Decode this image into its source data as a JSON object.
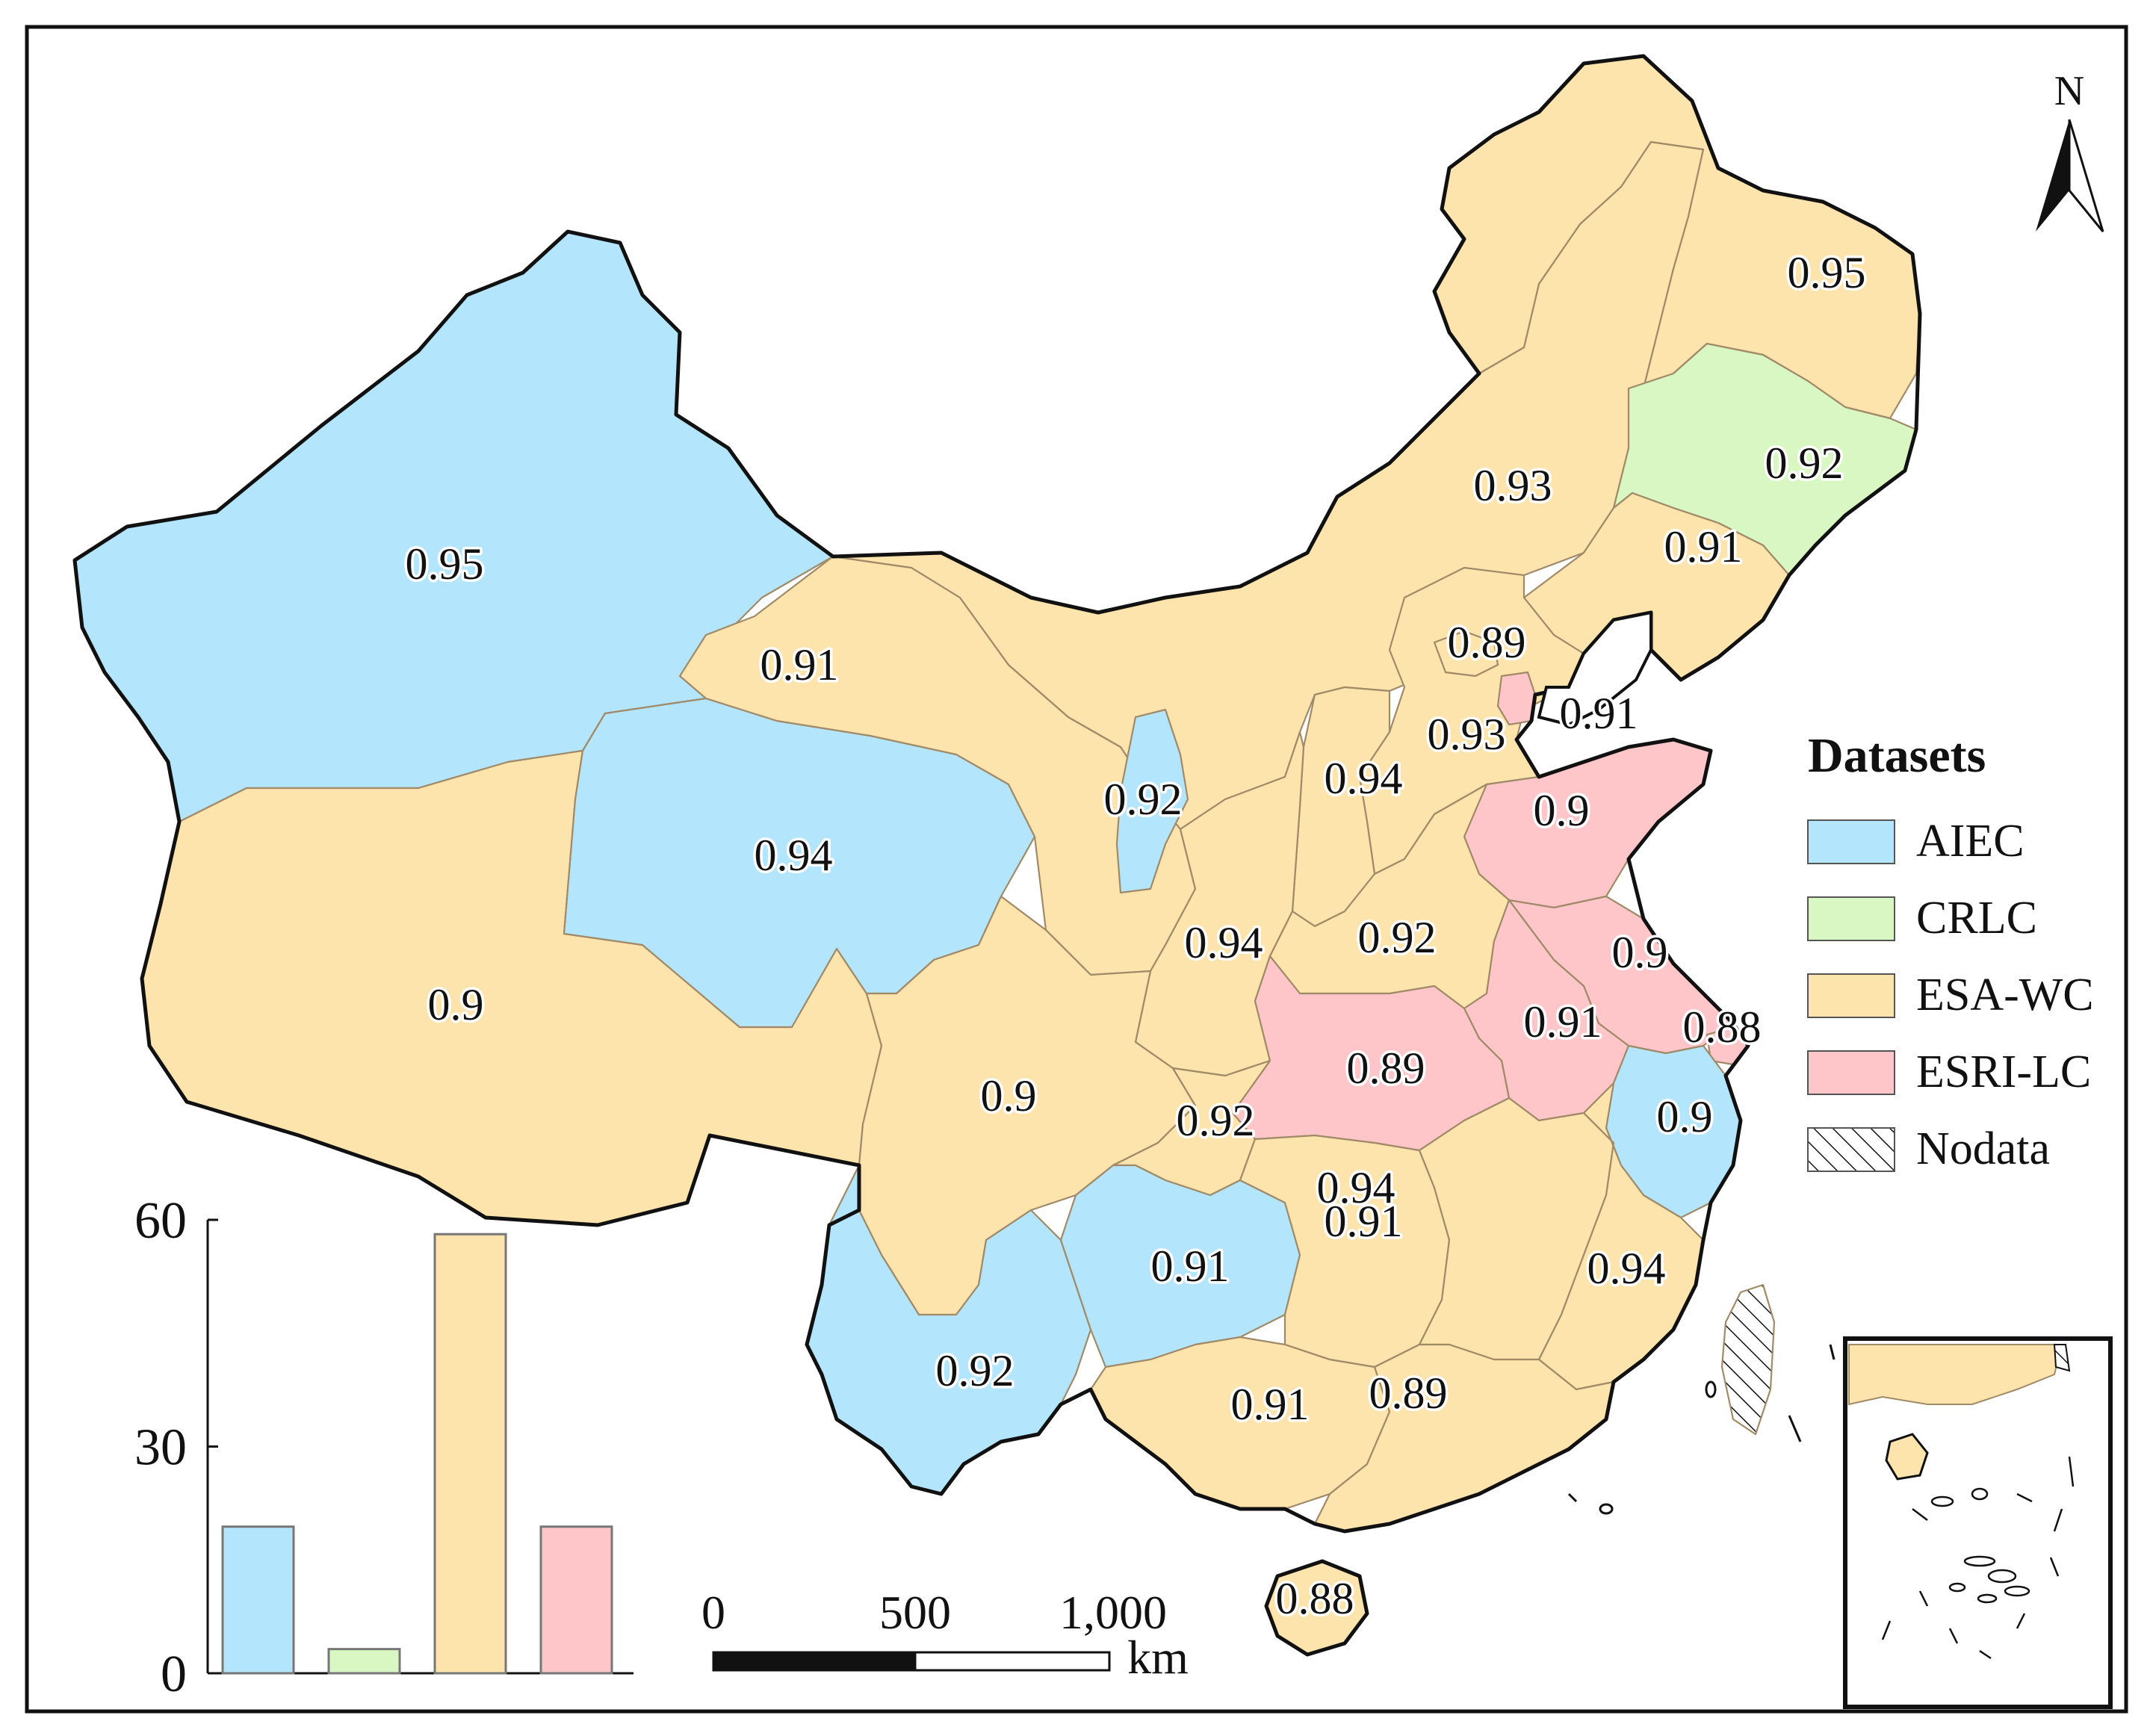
{
  "legend": {
    "title": "Datasets",
    "items": [
      {
        "label": "AIEC",
        "color": "#b3e5fc"
      },
      {
        "label": "CRLC",
        "color": "#d9f7c2"
      },
      {
        "label": "ESA-WC",
        "color": "#fde3ac"
      },
      {
        "label": "ESRI-LC",
        "color": "#fec6c9"
      },
      {
        "label": "Nodata",
        "pattern": "hatched"
      }
    ]
  },
  "north_arrow": "N",
  "scale_bar": {
    "ticks": [
      "0",
      "500",
      "1,000"
    ],
    "unit": "km"
  },
  "region_labels": [
    "0.95",
    "0.95",
    "0.92",
    "0.93",
    "0.91",
    "0.89",
    "0.91",
    "0.91",
    "0.93",
    "0.94",
    "0.92",
    "0.9",
    "0.94",
    "0.94",
    "0.92",
    "0.9",
    "0.9",
    "0.91",
    "0.88",
    "0.89",
    "0.9",
    "0.92",
    "0.9",
    "0.91",
    "0.94",
    "0.94",
    "0.91",
    "0.92",
    "0.91",
    "0.89",
    "0.88"
  ],
  "chart_data": {
    "type": "bar",
    "categories": [
      "AIEC",
      "CRLC",
      "ESA-WC",
      "ESRI-LC"
    ],
    "values": [
      19.4,
      3.2,
      58.1,
      19.4
    ],
    "colors": [
      "#b3e5fc",
      "#d9f7c2",
      "#fde3ac",
      "#fec6c9"
    ],
    "ylim": [
      0,
      60
    ],
    "yticks": [
      "0",
      "30",
      "60"
    ]
  }
}
